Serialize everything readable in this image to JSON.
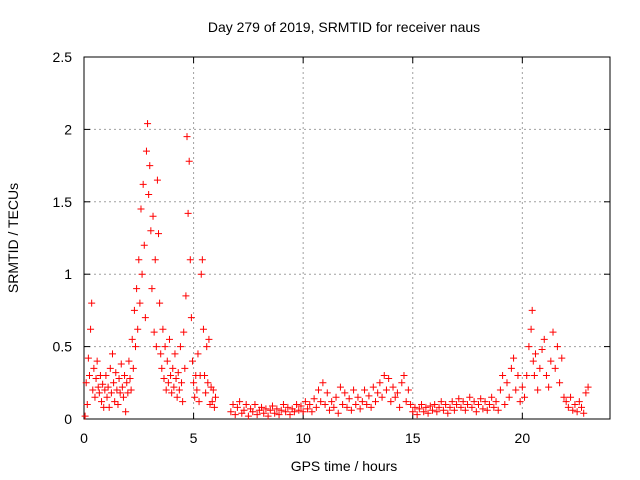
{
  "chart_data": {
    "type": "scatter",
    "title": "Day 279 of 2019, SRMTID for receiver naus",
    "xlabel": "GPS time / hours",
    "ylabel": "SRMTID / TECUs",
    "xlim": [
      0,
      24
    ],
    "ylim": [
      0,
      2.5
    ],
    "xticks": [
      0,
      5,
      10,
      15,
      20
    ],
    "yticks": [
      0,
      0.5,
      1,
      1.5,
      2,
      2.5
    ],
    "xtick_labels": [
      "0",
      "5",
      "10",
      "15",
      "20"
    ],
    "ytick_labels": [
      "0",
      "0.5",
      "1",
      "1.5",
      "2",
      "2.5"
    ],
    "grid": true,
    "marker": "+",
    "color": "#ff0000",
    "series": [
      {
        "name": "SRMTID",
        "points": [
          [
            0.05,
            0.02
          ],
          [
            0.1,
            0.25
          ],
          [
            0.15,
            0.1
          ],
          [
            0.2,
            0.42
          ],
          [
            0.25,
            0.3
          ],
          [
            0.3,
            0.62
          ],
          [
            0.35,
            0.8
          ],
          [
            0.4,
            0.2
          ],
          [
            0.45,
            0.35
          ],
          [
            0.5,
            0.15
          ],
          [
            0.55,
            0.28
          ],
          [
            0.6,
            0.4
          ],
          [
            0.65,
            0.22
          ],
          [
            0.7,
            0.18
          ],
          [
            0.75,
            0.3
          ],
          [
            0.8,
            0.12
          ],
          [
            0.85,
            0.24
          ],
          [
            0.9,
            0.08
          ],
          [
            0.95,
            0.2
          ],
          [
            1.0,
            0.3
          ],
          [
            1.05,
            0.15
          ],
          [
            1.1,
            0.22
          ],
          [
            1.15,
            0.08
          ],
          [
            1.2,
            0.35
          ],
          [
            1.25,
            0.18
          ],
          [
            1.3,
            0.45
          ],
          [
            1.35,
            0.25
          ],
          [
            1.4,
            0.12
          ],
          [
            1.45,
            0.32
          ],
          [
            1.5,
            0.2
          ],
          [
            1.55,
            0.1
          ],
          [
            1.6,
            0.28
          ],
          [
            1.65,
            0.18
          ],
          [
            1.7,
            0.38
          ],
          [
            1.75,
            0.22
          ],
          [
            1.8,
            0.15
          ],
          [
            1.85,
            0.3
          ],
          [
            1.9,
            0.05
          ],
          [
            1.95,
            0.25
          ],
          [
            2.0,
            0.18
          ],
          [
            2.05,
            0.4
          ],
          [
            2.1,
            0.28
          ],
          [
            2.15,
            0.2
          ],
          [
            2.2,
            0.55
          ],
          [
            2.25,
            0.35
          ],
          [
            2.3,
            0.75
          ],
          [
            2.35,
            0.5
          ],
          [
            2.4,
            0.9
          ],
          [
            2.45,
            0.62
          ],
          [
            2.5,
            1.1
          ],
          [
            2.55,
            0.8
          ],
          [
            2.6,
            1.45
          ],
          [
            2.65,
            1.0
          ],
          [
            2.7,
            1.62
          ],
          [
            2.75,
            1.2
          ],
          [
            2.8,
            0.7
          ],
          [
            2.85,
            1.85
          ],
          [
            2.9,
            2.04
          ],
          [
            2.95,
            1.55
          ],
          [
            3.0,
            1.75
          ],
          [
            3.05,
            1.3
          ],
          [
            3.1,
            0.9
          ],
          [
            3.15,
            1.4
          ],
          [
            3.2,
            0.6
          ],
          [
            3.25,
            1.1
          ],
          [
            3.3,
            0.5
          ],
          [
            3.35,
            1.65
          ],
          [
            3.4,
            1.28
          ],
          [
            3.45,
            0.8
          ],
          [
            3.5,
            0.45
          ],
          [
            3.55,
            0.35
          ],
          [
            3.6,
            0.62
          ],
          [
            3.65,
            0.28
          ],
          [
            3.7,
            0.5
          ],
          [
            3.75,
            0.2
          ],
          [
            3.8,
            0.4
          ],
          [
            3.85,
            0.25
          ],
          [
            3.9,
            0.55
          ],
          [
            3.95,
            0.3
          ],
          [
            4.0,
            0.18
          ],
          [
            4.05,
            0.35
          ],
          [
            4.1,
            0.22
          ],
          [
            4.15,
            0.45
          ],
          [
            4.2,
            0.28
          ],
          [
            4.25,
            0.15
          ],
          [
            4.3,
            0.32
          ],
          [
            4.35,
            0.2
          ],
          [
            4.4,
            0.5
          ],
          [
            4.45,
            0.25
          ],
          [
            4.5,
            0.12
          ],
          [
            4.55,
            0.6
          ],
          [
            4.6,
            0.35
          ],
          [
            4.65,
            0.85
          ],
          [
            4.7,
            1.95
          ],
          [
            4.75,
            1.42
          ],
          [
            4.8,
            1.78
          ],
          [
            4.85,
            1.1
          ],
          [
            4.9,
            0.7
          ],
          [
            4.95,
            0.4
          ],
          [
            5.0,
            0.25
          ],
          [
            5.05,
            0.15
          ],
          [
            5.1,
            0.3
          ],
          [
            5.15,
            0.2
          ],
          [
            5.2,
            0.45
          ],
          [
            5.25,
            0.12
          ],
          [
            5.3,
            0.3
          ],
          [
            5.35,
            1.0
          ],
          [
            5.4,
            1.1
          ],
          [
            5.45,
            0.62
          ],
          [
            5.5,
            0.3
          ],
          [
            5.55,
            0.18
          ],
          [
            5.6,
            0.5
          ],
          [
            5.65,
            0.25
          ],
          [
            5.7,
            0.55
          ],
          [
            5.75,
            0.1
          ],
          [
            5.8,
            0.22
          ],
          [
            5.85,
            0.12
          ],
          [
            5.9,
            0.2
          ],
          [
            5.95,
            0.08
          ],
          [
            6.0,
            0.15
          ],
          [
            6.7,
            0.05
          ],
          [
            6.8,
            0.1
          ],
          [
            6.9,
            0.03
          ],
          [
            7.0,
            0.08
          ],
          [
            7.1,
            0.12
          ],
          [
            7.2,
            0.04
          ],
          [
            7.3,
            0.06
          ],
          [
            7.4,
            0.1
          ],
          [
            7.5,
            0.02
          ],
          [
            7.6,
            0.07
          ],
          [
            7.7,
            0.05
          ],
          [
            7.8,
            0.1
          ],
          [
            7.9,
            0.03
          ],
          [
            8.0,
            0.06
          ],
          [
            8.1,
            0.08
          ],
          [
            8.2,
            0.04
          ],
          [
            8.3,
            0.07
          ],
          [
            8.4,
            0.02
          ],
          [
            8.5,
            0.06
          ],
          [
            8.6,
            0.09
          ],
          [
            8.7,
            0.04
          ],
          [
            8.8,
            0.07
          ],
          [
            8.9,
            0.03
          ],
          [
            9.0,
            0.06
          ],
          [
            9.1,
            0.1
          ],
          [
            9.2,
            0.05
          ],
          [
            9.3,
            0.08
          ],
          [
            9.4,
            0.03
          ],
          [
            9.5,
            0.07
          ],
          [
            9.6,
            0.05
          ],
          [
            9.7,
            0.1
          ],
          [
            9.8,
            0.06
          ],
          [
            9.9,
            0.09
          ],
          [
            10.0,
            0.05
          ],
          [
            10.1,
            0.12
          ],
          [
            10.2,
            0.07
          ],
          [
            10.3,
            0.1
          ],
          [
            10.4,
            0.05
          ],
          [
            10.5,
            0.14
          ],
          [
            10.6,
            0.08
          ],
          [
            10.7,
            0.2
          ],
          [
            10.8,
            0.12
          ],
          [
            10.9,
            0.25
          ],
          [
            11.0,
            0.1
          ],
          [
            11.1,
            0.18
          ],
          [
            11.2,
            0.06
          ],
          [
            11.3,
            0.12
          ],
          [
            11.4,
            0.08
          ],
          [
            11.5,
            0.15
          ],
          [
            11.6,
            0.04
          ],
          [
            11.7,
            0.22
          ],
          [
            11.8,
            0.1
          ],
          [
            11.9,
            0.18
          ],
          [
            12.0,
            0.08
          ],
          [
            12.1,
            0.14
          ],
          [
            12.2,
            0.06
          ],
          [
            12.3,
            0.2
          ],
          [
            12.4,
            0.1
          ],
          [
            12.5,
            0.15
          ],
          [
            12.6,
            0.07
          ],
          [
            12.7,
            0.12
          ],
          [
            12.8,
            0.2
          ],
          [
            12.9,
            0.1
          ],
          [
            13.0,
            0.16
          ],
          [
            13.1,
            0.08
          ],
          [
            13.2,
            0.22
          ],
          [
            13.3,
            0.12
          ],
          [
            13.4,
            0.18
          ],
          [
            13.5,
            0.25
          ],
          [
            13.6,
            0.15
          ],
          [
            13.7,
            0.3
          ],
          [
            13.8,
            0.2
          ],
          [
            13.9,
            0.28
          ],
          [
            14.0,
            0.12
          ],
          [
            14.1,
            0.22
          ],
          [
            14.2,
            0.15
          ],
          [
            14.3,
            0.18
          ],
          [
            14.4,
            0.08
          ],
          [
            14.5,
            0.25
          ],
          [
            14.6,
            0.3
          ],
          [
            14.7,
            0.12
          ],
          [
            14.8,
            0.2
          ],
          [
            14.9,
            0.1
          ],
          [
            15.0,
            0.05
          ],
          [
            15.1,
            0.08
          ],
          [
            15.2,
            0.03
          ],
          [
            15.3,
            0.07
          ],
          [
            15.4,
            0.1
          ],
          [
            15.5,
            0.05
          ],
          [
            15.6,
            0.08
          ],
          [
            15.7,
            0.04
          ],
          [
            15.8,
            0.09
          ],
          [
            15.9,
            0.06
          ],
          [
            16.0,
            0.1
          ],
          [
            16.1,
            0.05
          ],
          [
            16.2,
            0.08
          ],
          [
            16.3,
            0.12
          ],
          [
            16.4,
            0.06
          ],
          [
            16.5,
            0.1
          ],
          [
            16.6,
            0.04
          ],
          [
            16.7,
            0.08
          ],
          [
            16.8,
            0.12
          ],
          [
            16.9,
            0.06
          ],
          [
            17.0,
            0.1
          ],
          [
            17.1,
            0.14
          ],
          [
            17.2,
            0.08
          ],
          [
            17.3,
            0.12
          ],
          [
            17.4,
            0.06
          ],
          [
            17.5,
            0.1
          ],
          [
            17.6,
            0.15
          ],
          [
            17.7,
            0.08
          ],
          [
            17.8,
            0.12
          ],
          [
            17.9,
            0.05
          ],
          [
            18.0,
            0.1
          ],
          [
            18.1,
            0.14
          ],
          [
            18.2,
            0.07
          ],
          [
            18.3,
            0.12
          ],
          [
            18.4,
            0.06
          ],
          [
            18.5,
            0.1
          ],
          [
            18.6,
            0.15
          ],
          [
            18.7,
            0.08
          ],
          [
            18.8,
            0.12
          ],
          [
            18.9,
            0.06
          ],
          [
            19.0,
            0.2
          ],
          [
            19.1,
            0.3
          ],
          [
            19.2,
            0.1
          ],
          [
            19.3,
            0.25
          ],
          [
            19.4,
            0.15
          ],
          [
            19.5,
            0.35
          ],
          [
            19.6,
            0.42
          ],
          [
            19.7,
            0.2
          ],
          [
            19.8,
            0.3
          ],
          [
            19.9,
            0.12
          ],
          [
            20.0,
            0.22
          ],
          [
            20.1,
            0.15
          ],
          [
            20.2,
            0.3
          ],
          [
            20.3,
            0.5
          ],
          [
            20.4,
            0.62
          ],
          [
            20.45,
            0.75
          ],
          [
            20.5,
            0.4
          ],
          [
            20.55,
            0.3
          ],
          [
            20.6,
            0.45
          ],
          [
            20.7,
            0.2
          ],
          [
            20.8,
            0.35
          ],
          [
            20.9,
            0.48
          ],
          [
            21.0,
            0.55
          ],
          [
            21.1,
            0.3
          ],
          [
            21.2,
            0.22
          ],
          [
            21.3,
            0.4
          ],
          [
            21.4,
            0.6
          ],
          [
            21.5,
            0.35
          ],
          [
            21.6,
            0.5
          ],
          [
            21.7,
            0.25
          ],
          [
            21.8,
            0.42
          ],
          [
            21.9,
            0.15
          ],
          [
            22.0,
            0.12
          ],
          [
            22.1,
            0.08
          ],
          [
            22.2,
            0.15
          ],
          [
            22.3,
            0.06
          ],
          [
            22.4,
            0.1
          ],
          [
            22.5,
            0.05
          ],
          [
            22.6,
            0.12
          ],
          [
            22.7,
            0.08
          ],
          [
            22.8,
            0.04
          ],
          [
            22.9,
            0.18
          ],
          [
            23.0,
            0.22
          ]
        ]
      }
    ]
  }
}
